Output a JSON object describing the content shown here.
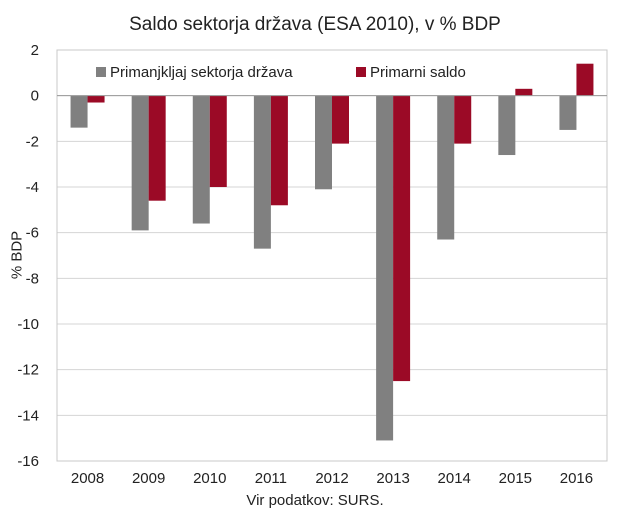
{
  "chart_data": {
    "type": "bar",
    "title": "Saldo sektorja država (ESA 2010), v % BDP",
    "ylabel": "% BDP",
    "xlabel": "",
    "source": "Vir podatkov: SURS.",
    "categories": [
      "2008",
      "2009",
      "2010",
      "2011",
      "2012",
      "2013",
      "2014",
      "2015",
      "2016"
    ],
    "series": [
      {
        "name": "Primanjkljaj sektorja država",
        "color": "#808080",
        "values": [
          -1.4,
          -5.9,
          -5.6,
          -6.7,
          -4.1,
          -15.1,
          -6.3,
          -2.6,
          -1.5
        ]
      },
      {
        "name": "Primarni saldo",
        "color": "#9b0a26",
        "values": [
          -0.3,
          -4.6,
          -4.0,
          -4.8,
          -2.1,
          -12.5,
          -2.1,
          0.3,
          1.4
        ]
      }
    ],
    "ylim": [
      -16,
      2
    ],
    "yticks": [
      2,
      0,
      -2,
      -4,
      -6,
      -8,
      -10,
      -12,
      -14,
      -16
    ],
    "grid": true,
    "legend_position": "top"
  }
}
